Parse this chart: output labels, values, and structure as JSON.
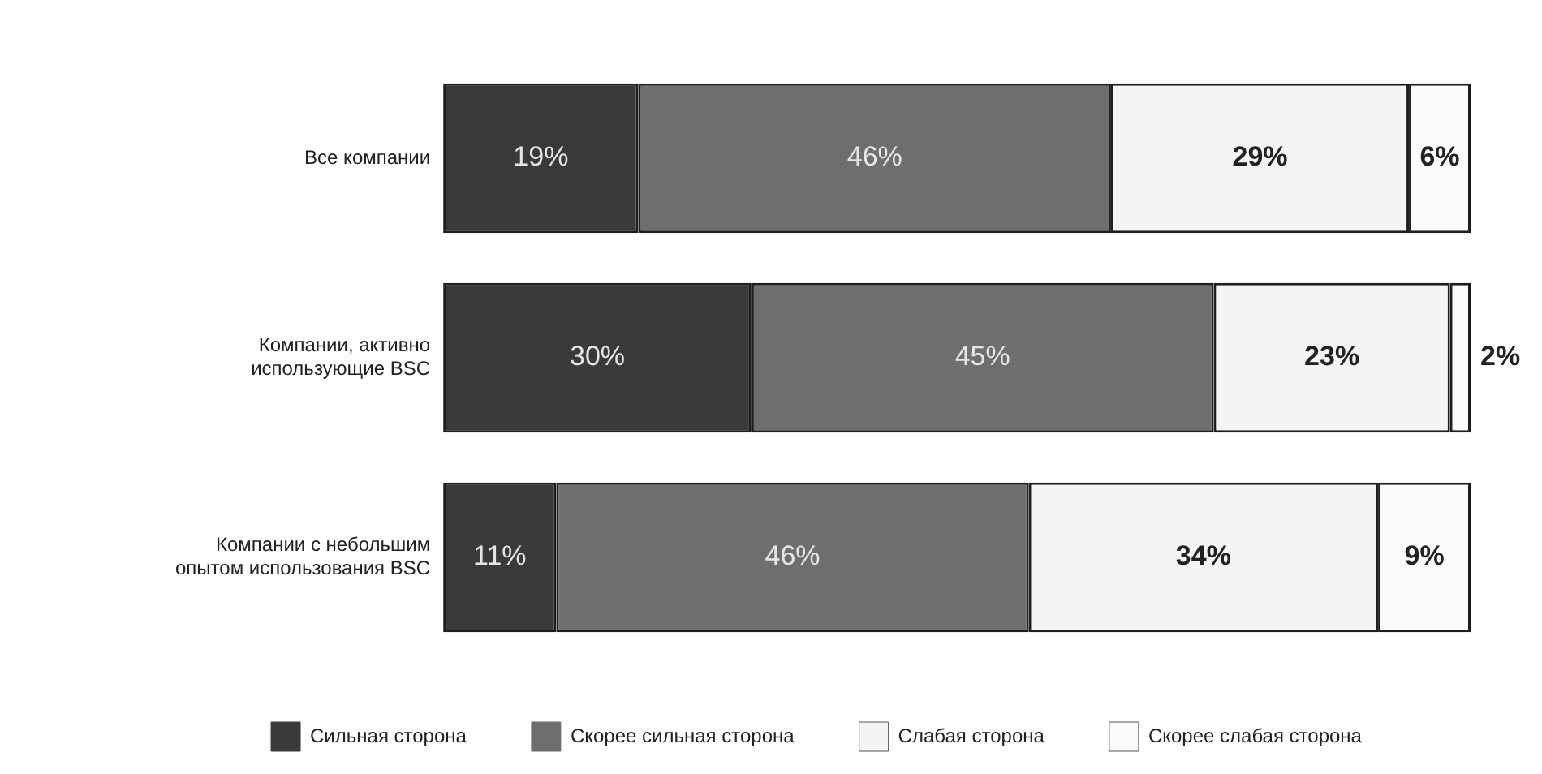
{
  "chart_data": {
    "type": "bar",
    "orientation": "horizontal",
    "stacked": true,
    "categories": [
      "Все компании",
      "Компании, активно использующие BSC",
      "Компании с небольшим опытом использования BSC"
    ],
    "series": [
      {
        "name": "Сильная сторона",
        "color": "#3a3a3a",
        "values": [
          19,
          30,
          11
        ],
        "value_labels": [
          "19%",
          "30%",
          "11%"
        ]
      },
      {
        "name": "Скорее сильная сторона",
        "color": "#6e6e6e",
        "values": [
          46,
          45,
          46
        ],
        "value_labels": [
          "46%",
          "45%",
          "46%"
        ]
      },
      {
        "name": "Слабая сторона",
        "color": "#f4f4f4",
        "values": [
          29,
          23,
          34
        ],
        "value_labels": [
          "29%",
          "23%",
          "34%"
        ]
      },
      {
        "name": "Скорее слабая сторона",
        "color": "#fbfbfb",
        "values": [
          6,
          2,
          9
        ],
        "value_labels": [
          "6%",
          "2%",
          "9%"
        ]
      }
    ],
    "xlim": [
      0,
      100
    ],
    "tick_labels": "y",
    "legend": "bottom"
  }
}
